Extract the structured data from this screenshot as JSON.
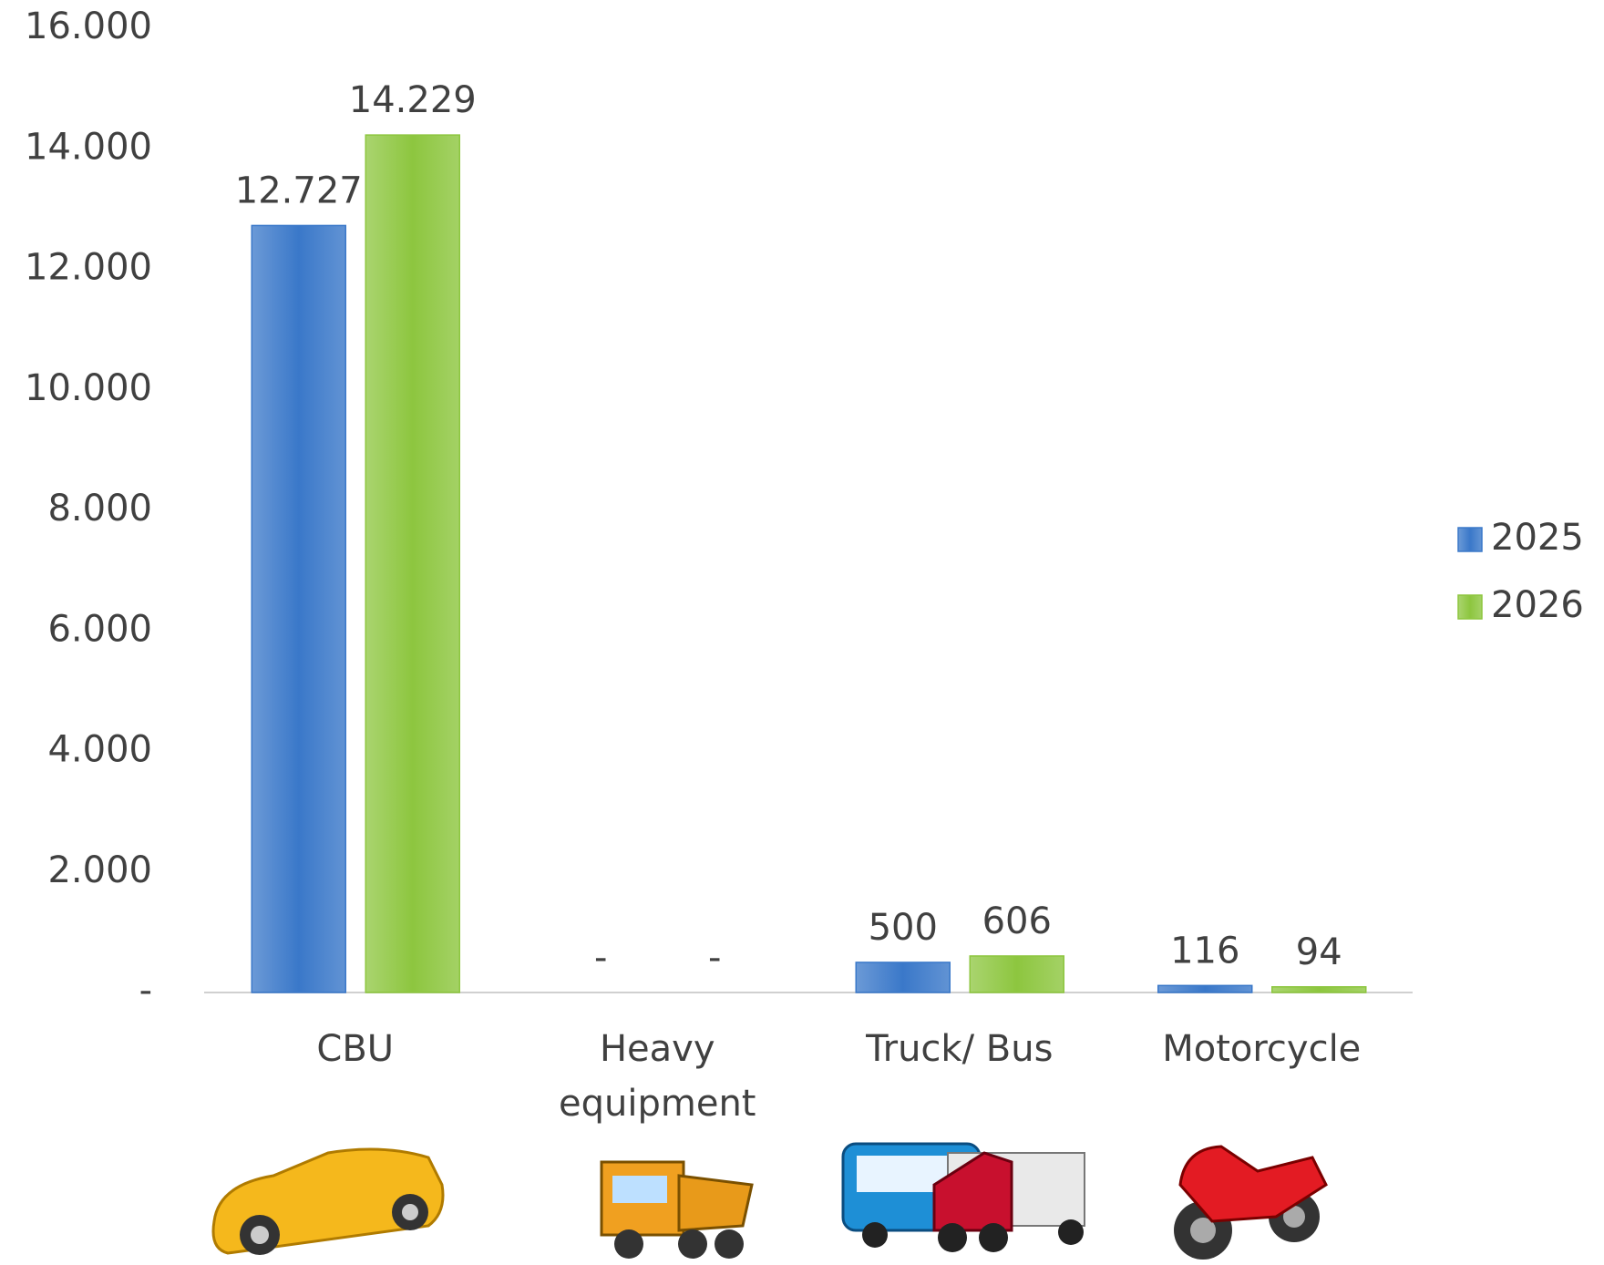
{
  "chart_data": {
    "type": "bar",
    "categories": [
      "CBU",
      "Heavy equipment",
      "Truck/ Bus",
      "Motorcycle"
    ],
    "series": [
      {
        "name": "2025",
        "color": "#3a78c9",
        "values": [
          12727,
          0,
          500,
          116
        ],
        "value_labels": [
          "12.727",
          "-",
          "500",
          "116"
        ]
      },
      {
        "name": "2026",
        "color": "#8dc63f",
        "values": [
          14229,
          0,
          606,
          94
        ],
        "value_labels": [
          "14.229",
          "-",
          "606",
          "94"
        ]
      }
    ],
    "ylim": [
      0,
      16000
    ],
    "yticks": [
      {
        "value": 0,
        "label": "-"
      },
      {
        "value": 2000,
        "label": "2.000"
      },
      {
        "value": 4000,
        "label": "4.000"
      },
      {
        "value": 6000,
        "label": "6.000"
      },
      {
        "value": 8000,
        "label": "8.000"
      },
      {
        "value": 10000,
        "label": "10.000"
      },
      {
        "value": 12000,
        "label": "12.000"
      },
      {
        "value": 14000,
        "label": "14.000"
      },
      {
        "value": 16000,
        "label": "16.000"
      }
    ],
    "grid": false,
    "legend": "right"
  }
}
